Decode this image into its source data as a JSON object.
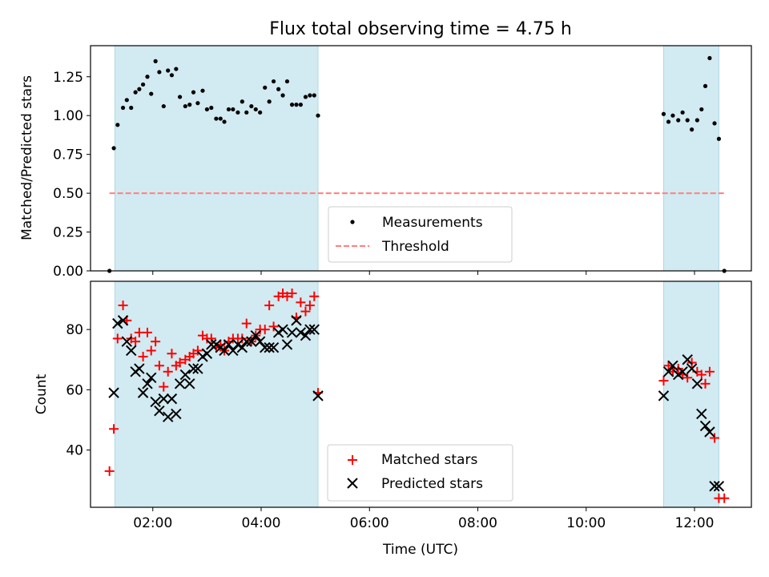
{
  "title": "Flux total observing time = 4.75 h",
  "colors": {
    "shade": "#add8e6",
    "measurement": "#000000",
    "threshold": "#ff7f7f",
    "matched": "#ff0000",
    "predicted": "#000000"
  },
  "chart_data": [
    {
      "type": "scatter",
      "ylabel": "Matched/Predicted stars",
      "xlabel": "",
      "xlim": [
        0.85,
        13.05
      ],
      "ylim": [
        0,
        1.45
      ],
      "yticks": [
        "0.00",
        "0.25",
        "0.50",
        "0.75",
        "1.00",
        "1.25"
      ],
      "ytick_values": [
        0,
        0.25,
        0.5,
        0.75,
        1.0,
        1.25
      ],
      "xtick_values": [
        2,
        4,
        6,
        8,
        10,
        12
      ],
      "shaded_ranges": [
        [
          1.3,
          5.05
        ],
        [
          11.43,
          12.45
        ]
      ],
      "threshold": {
        "name": "Threshold",
        "y": 0.5,
        "x": [
          1.2,
          12.57
        ]
      },
      "legend": {
        "position": "lower-center",
        "entries": [
          "Measurements",
          "Threshold"
        ]
      },
      "series": [
        {
          "name": "Measurements",
          "x": [
            1.2,
            1.28,
            1.35,
            1.45,
            1.52,
            1.6,
            1.68,
            1.75,
            1.82,
            1.9,
            1.97,
            2.05,
            2.12,
            2.2,
            2.28,
            2.35,
            2.43,
            2.5,
            2.6,
            2.68,
            2.75,
            2.83,
            2.92,
            3.0,
            3.08,
            3.17,
            3.25,
            3.32,
            3.4,
            3.48,
            3.57,
            3.65,
            3.73,
            3.82,
            3.9,
            3.98,
            4.07,
            4.15,
            4.23,
            4.32,
            4.4,
            4.48,
            4.57,
            4.65,
            4.73,
            4.82,
            4.9,
            4.98,
            5.05,
            11.43,
            11.52,
            11.6,
            11.7,
            11.78,
            11.87,
            11.95,
            12.05,
            12.13,
            12.2,
            12.28,
            12.37,
            12.45,
            12.55
          ],
          "y": [
            0.0,
            0.79,
            0.94,
            1.05,
            1.1,
            1.05,
            1.15,
            1.17,
            1.2,
            1.25,
            1.14,
            1.35,
            1.28,
            1.06,
            1.29,
            1.26,
            1.3,
            1.12,
            1.06,
            1.07,
            1.15,
            1.08,
            1.16,
            1.04,
            1.05,
            0.98,
            0.98,
            0.96,
            1.04,
            1.04,
            1.02,
            1.09,
            1.02,
            1.06,
            1.04,
            1.02,
            1.18,
            1.09,
            1.22,
            1.17,
            1.13,
            1.22,
            1.07,
            1.07,
            1.07,
            1.12,
            1.13,
            1.13,
            1.0,
            1.01,
            0.96,
            1.0,
            0.97,
            1.02,
            0.97,
            0.91,
            0.97,
            1.04,
            1.19,
            1.37,
            0.95,
            0.85,
            0.0
          ]
        }
      ]
    },
    {
      "type": "scatter",
      "ylabel": "Count",
      "xlabel": "Time (UTC)",
      "xlim": [
        0.85,
        13.05
      ],
      "ylim": [
        21,
        96
      ],
      "yticks": [
        "40",
        "60",
        "80"
      ],
      "ytick_values": [
        40,
        60,
        80
      ],
      "xticks": [
        "02:00",
        "04:00",
        "06:00",
        "08:00",
        "10:00",
        "12:00"
      ],
      "xtick_values": [
        2,
        4,
        6,
        8,
        10,
        12
      ],
      "shaded_ranges": [
        [
          1.3,
          5.05
        ],
        [
          11.43,
          12.45
        ]
      ],
      "legend": {
        "position": "lower-center",
        "entries": [
          "Matched stars",
          "Predicted stars"
        ]
      },
      "series": [
        {
          "name": "Matched stars",
          "x": [
            1.2,
            1.28,
            1.35,
            1.45,
            1.52,
            1.6,
            1.68,
            1.75,
            1.82,
            1.9,
            1.97,
            2.05,
            2.12,
            2.2,
            2.28,
            2.35,
            2.43,
            2.5,
            2.6,
            2.68,
            2.75,
            2.83,
            2.92,
            3.0,
            3.08,
            3.17,
            3.25,
            3.32,
            3.4,
            3.48,
            3.57,
            3.65,
            3.73,
            3.82,
            3.9,
            3.98,
            4.07,
            4.15,
            4.23,
            4.32,
            4.4,
            4.48,
            4.57,
            4.65,
            4.73,
            4.82,
            4.9,
            4.98,
            5.05,
            11.43,
            11.52,
            11.6,
            11.7,
            11.78,
            11.87,
            11.95,
            12.05,
            12.13,
            12.2,
            12.28,
            12.37,
            12.45,
            12.55
          ],
          "y": [
            33,
            47,
            77,
            88,
            83,
            77,
            76,
            79,
            71,
            79,
            73,
            76,
            68,
            61,
            66,
            72,
            68,
            69,
            70,
            71,
            72,
            73,
            78,
            77,
            77,
            74,
            75,
            73,
            76,
            77,
            77,
            77,
            82,
            76,
            78,
            80,
            80,
            88,
            81,
            91,
            92,
            91,
            92,
            84,
            89,
            86,
            88,
            91,
            59,
            63,
            68,
            66,
            67,
            65,
            64,
            69,
            66,
            65,
            62,
            66,
            44,
            24,
            24
          ],
          "y_note": ""
        },
        {
          "name": "Predicted stars",
          "x": [
            1.28,
            1.35,
            1.45,
            1.52,
            1.6,
            1.68,
            1.75,
            1.82,
            1.9,
            1.97,
            2.05,
            2.12,
            2.2,
            2.28,
            2.35,
            2.43,
            2.5,
            2.6,
            2.68,
            2.75,
            2.83,
            2.92,
            3.0,
            3.08,
            3.17,
            3.25,
            3.32,
            3.4,
            3.48,
            3.57,
            3.65,
            3.73,
            3.82,
            3.9,
            3.98,
            4.07,
            4.15,
            4.23,
            4.32,
            4.4,
            4.48,
            4.57,
            4.65,
            4.73,
            4.82,
            4.9,
            4.98,
            5.05,
            11.43,
            11.52,
            11.6,
            11.7,
            11.78,
            11.87,
            11.95,
            12.05,
            12.13,
            12.2,
            12.28,
            12.37,
            12.45
          ],
          "y": [
            59,
            82,
            83,
            76,
            73,
            66,
            67,
            59,
            62,
            64,
            56,
            53,
            57,
            51,
            57,
            52,
            62,
            65,
            62,
            67,
            67,
            71,
            72,
            75,
            75,
            74,
            73,
            75,
            73,
            75,
            74,
            76,
            76,
            78,
            76,
            74,
            74,
            74,
            79,
            80,
            75,
            79,
            83,
            79,
            78,
            80,
            80,
            58,
            58,
            66,
            68,
            65,
            66,
            70,
            67,
            62,
            52,
            48,
            46,
            28,
            28
          ]
        }
      ]
    }
  ]
}
